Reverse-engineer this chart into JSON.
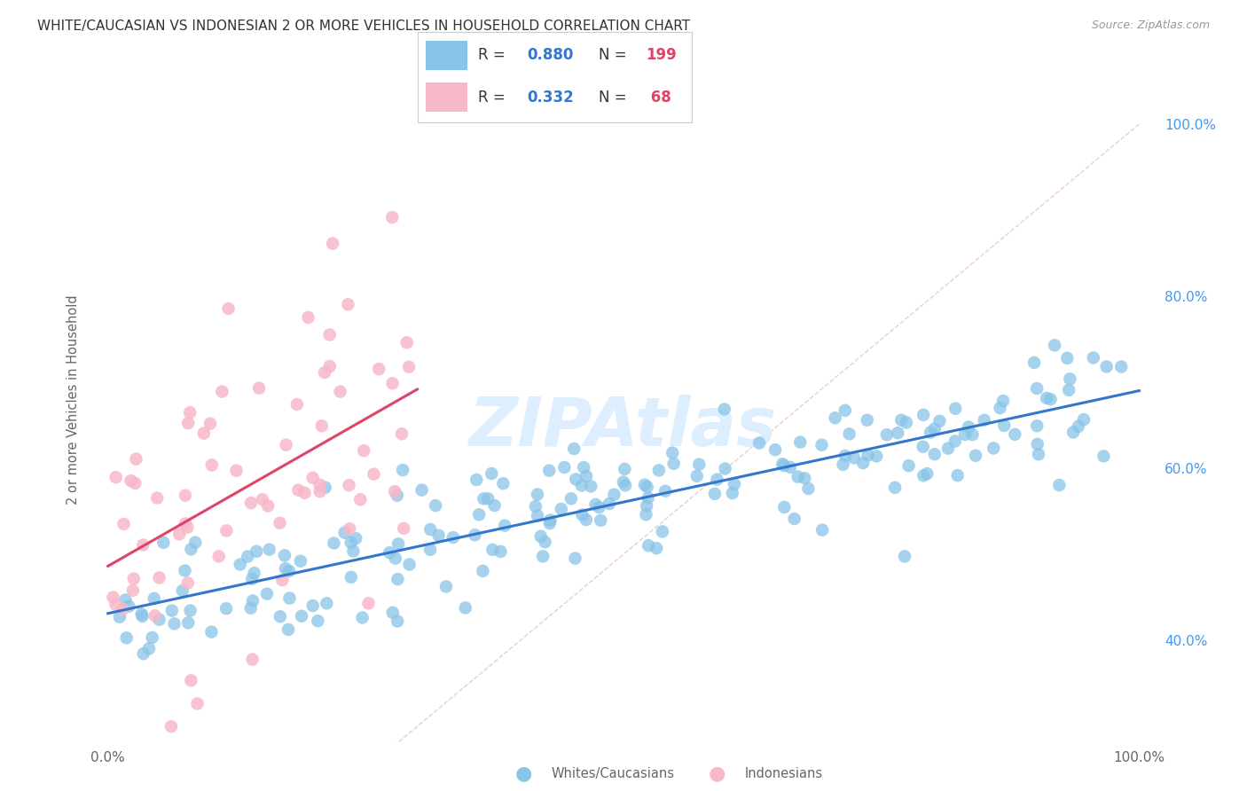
{
  "title": "WHITE/CAUCASIAN VS INDONESIAN 2 OR MORE VEHICLES IN HOUSEHOLD CORRELATION CHART",
  "source": "Source: ZipAtlas.com",
  "ylabel": "2 or more Vehicles in Household",
  "blue_R": 0.88,
  "blue_N": 199,
  "pink_R": 0.332,
  "pink_N": 68,
  "blue_color": "#88c4e8",
  "pink_color": "#f7b8c8",
  "blue_line_color": "#3377cc",
  "pink_line_color": "#dd4466",
  "diagonal_color": "#e8c8c8",
  "bg_color": "#ffffff",
  "grid_color": "#e0e0e0",
  "watermark_text": "ZIPAtlas",
  "watermark_color": "#ddeeff",
  "legend_text_color": "#333333",
  "legend_R_color": "#3377cc",
  "legend_N_color": "#dd4466",
  "yaxis_color": "#4499ee",
  "xaxis_color": "#666666",
  "title_color": "#333333",
  "source_color": "#999999",
  "ylabel_color": "#666666",
  "xlim": [
    -2,
    102
  ],
  "ylim": [
    28,
    108
  ],
  "ytick_vals": [
    40,
    60,
    80,
    100
  ],
  "ytick_labels": [
    "40.0%",
    "60.0%",
    "80.0%",
    "100.0%"
  ],
  "xtick_show": [
    "0.0%",
    "100.0%"
  ],
  "blue_x_seed": 7,
  "pink_x_seed": 13
}
